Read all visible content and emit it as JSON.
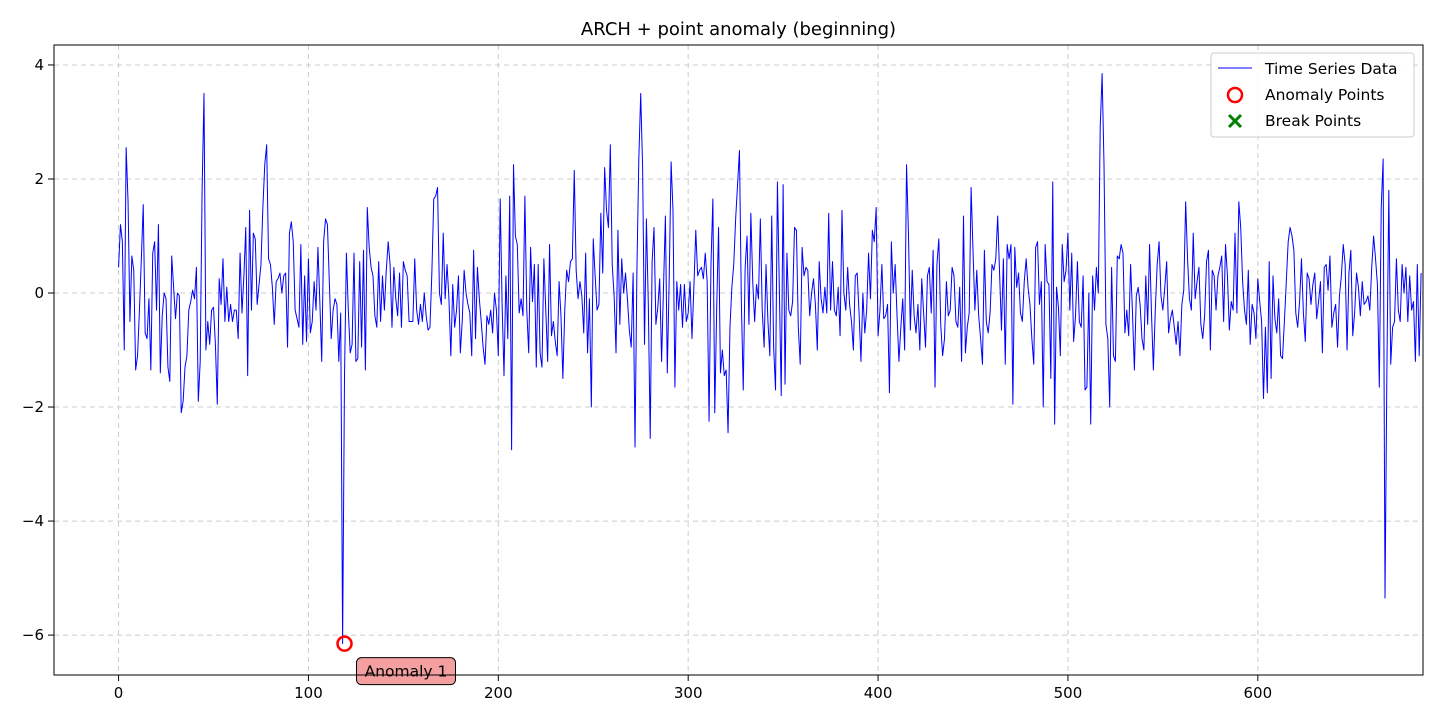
{
  "chart_data": {
    "type": "line",
    "title": "ARCH + point anomaly (beginning)",
    "xlabel": "",
    "ylabel": "",
    "xlim": [
      -34,
      687
    ],
    "ylim": [
      -6.7,
      4.35
    ],
    "xticks": [
      0,
      100,
      200,
      300,
      400,
      500,
      600
    ],
    "yticks": [
      -6,
      -4,
      -2,
      0,
      2,
      4
    ],
    "grid": true,
    "legend_position": "top-right",
    "colors": {
      "series": "#0000ff",
      "anomaly": "#ff0000",
      "break": "#008000",
      "grid": "#cccccc",
      "annotation_bg": "#f08080"
    },
    "series": [
      {
        "name": "Time Series Data",
        "x_start": 0,
        "x_step": 1,
        "values": [
          0.45,
          1.2,
          0.9,
          -1.0,
          2.55,
          1.6,
          -0.5,
          0.65,
          0.4,
          -1.35,
          -1.1,
          -0.3,
          0.6,
          1.55,
          -0.7,
          -0.8,
          -0.1,
          -1.35,
          0.7,
          0.9,
          -0.3,
          1.2,
          -1.4,
          -0.4,
          0.0,
          -0.1,
          -1.3,
          -1.55,
          0.65,
          0.1,
          -0.45,
          0.0,
          -0.05,
          -2.1,
          -1.9,
          -1.3,
          -1.1,
          -0.3,
          -0.15,
          0.05,
          -0.1,
          0.45,
          -1.9,
          -1.2,
          1.8,
          3.5,
          -1.0,
          -0.5,
          -0.9,
          -0.3,
          -0.25,
          -0.9,
          -1.95,
          0.25,
          -0.2,
          0.6,
          -0.5,
          0.1,
          -0.5,
          -0.2,
          -0.5,
          -0.3,
          -0.3,
          -0.8,
          0.7,
          -0.35,
          0.3,
          1.15,
          -1.45,
          1.45,
          -0.3,
          1.05,
          0.95,
          -0.2,
          0.15,
          0.5,
          1.5,
          2.25,
          2.6,
          0.6,
          0.5,
          0.1,
          -0.55,
          0.2,
          0.25,
          0.35,
          0.0,
          0.3,
          0.35,
          -0.95,
          1.05,
          1.25,
          0.9,
          -0.3,
          -0.45,
          -0.6,
          0.85,
          -0.9,
          0.3,
          -0.85,
          0.6,
          -0.7,
          -0.5,
          0.2,
          -0.3,
          0.8,
          -0.15,
          -1.2,
          0.9,
          1.3,
          1.2,
          0.2,
          -0.8,
          -0.3,
          -0.1,
          -0.2,
          -1.2,
          -0.35,
          -6.15,
          -1.45,
          0.7,
          -0.3,
          -1.05,
          -0.9,
          0.7,
          -1.2,
          -1.15,
          0.55,
          -0.95,
          0.75,
          -1.35,
          1.5,
          0.8,
          0.45,
          0.3,
          -0.4,
          -0.6,
          0.55,
          -0.5,
          0.3,
          -0.3,
          0.4,
          0.9,
          0.5,
          -0.6,
          0.45,
          -0.1,
          -0.4,
          0.35,
          -0.6,
          0.55,
          0.4,
          0.3,
          -0.5,
          -0.5,
          -0.5,
          0.6,
          -0.3,
          -0.55,
          -0.2,
          -0.5,
          0.0,
          -0.4,
          -0.65,
          -0.6,
          0.35,
          1.65,
          1.7,
          1.85,
          0.0,
          -0.2,
          1.05,
          -0.1,
          0.5,
          -0.1,
          -1.1,
          0.15,
          -0.6,
          -0.3,
          0.3,
          -1.05,
          -0.5,
          0.4,
          0.0,
          -0.2,
          -0.35,
          -1.1,
          0.75,
          -0.8,
          0.45,
          -0.1,
          -0.5,
          -0.95,
          -1.25,
          -0.4,
          -0.55,
          -0.3,
          -0.7,
          0.0,
          -0.3,
          -1.1,
          1.65,
          -0.2,
          -1.45,
          0.3,
          -0.8,
          1.7,
          -2.75,
          2.25,
          1.0,
          0.85,
          -0.35,
          -0.1,
          -0.4,
          1.7,
          -0.3,
          -1.05,
          0.8,
          -0.15,
          0.5,
          -1.3,
          0.5,
          -1.05,
          -1.3,
          0.6,
          -0.3,
          -1.2,
          0.85,
          -0.75,
          -0.5,
          -0.85,
          -1.1,
          0.2,
          -0.4,
          -1.5,
          -0.3,
          0.4,
          0.2,
          0.55,
          0.6,
          2.15,
          0.4,
          -0.1,
          0.2,
          -0.05,
          -0.7,
          0.7,
          -1.05,
          -0.1,
          -2.0,
          0.95,
          0.3,
          -0.3,
          -0.2,
          1.4,
          0.35,
          2.2,
          1.45,
          1.15,
          2.6,
          0.5,
          -0.05,
          -1.05,
          1.1,
          -0.55,
          0.6,
          0.0,
          0.35,
          -0.1,
          -0.65,
          -0.95,
          0.35,
          -2.7,
          0.4,
          2.35,
          3.5,
          2.2,
          -0.9,
          1.3,
          -0.2,
          -2.55,
          0.55,
          1.15,
          -0.55,
          -0.25,
          0.25,
          -1.2,
          0.1,
          1.35,
          -1.4,
          0.25,
          2.3,
          1.45,
          -1.65,
          0.2,
          -0.3,
          0.15,
          -0.6,
          0.15,
          -0.5,
          -0.35,
          0.2,
          -0.8,
          0.1,
          1.1,
          0.3,
          0.4,
          0.45,
          0.25,
          0.7,
          0.2,
          -2.25,
          0.5,
          1.65,
          -2.1,
          -0.3,
          1.15,
          -1.4,
          -1.0,
          -1.45,
          -1.35,
          -2.45,
          -0.6,
          0.1,
          0.5,
          1.3,
          1.9,
          2.5,
          -0.15,
          -1.7,
          0.45,
          1.0,
          -0.55,
          1.4,
          0.2,
          -0.5,
          0.15,
          -0.1,
          1.3,
          -0.3,
          -0.95,
          0.5,
          -0.5,
          -1.1,
          1.35,
          -0.95,
          -1.7,
          1.95,
          0.1,
          -1.8,
          1.9,
          -1.6,
          0.7,
          -0.3,
          -0.4,
          -0.15,
          1.15,
          1.1,
          -0.6,
          -1.25,
          0.8,
          0.3,
          0.45,
          0.4,
          -0.4,
          0.0,
          0.25,
          -0.2,
          -1.0,
          0.55,
          -0.1,
          -0.35,
          0.1,
          -0.35,
          1.4,
          -0.3,
          0.55,
          -0.3,
          -0.4,
          0.1,
          -0.75,
          1.45,
          0.0,
          -0.3,
          0.45,
          -0.2,
          -0.5,
          -1.0,
          0.3,
          0.35,
          -0.35,
          -1.2,
          0.0,
          -0.7,
          -0.3,
          0.7,
          -0.1,
          1.1,
          0.9,
          1.5,
          -0.75,
          -0.3,
          0.5,
          -0.45,
          -0.4,
          -0.2,
          -1.75,
          0.9,
          0.0,
          0.5,
          -0.4,
          -1.2,
          -0.6,
          -0.1,
          -1.0,
          2.25,
          1.05,
          -0.65,
          0.4,
          -0.4,
          -0.7,
          -0.2,
          -1.0,
          0.25,
          -0.35,
          -0.95,
          0.3,
          0.45,
          -0.35,
          0.75,
          -1.65,
          0.5,
          0.95,
          -0.55,
          -1.1,
          -0.8,
          0.2,
          -0.4,
          -0.3,
          0.45,
          0.3,
          -0.5,
          -0.6,
          0.1,
          -1.2,
          1.35,
          -1.05,
          -0.6,
          -0.35,
          1.85,
          0.75,
          -0.3,
          0.4,
          -0.4,
          -0.8,
          -1.25,
          0.75,
          -0.5,
          -0.7,
          -0.35,
          0.5,
          0.4,
          0.6,
          1.35,
          0.35,
          -0.65,
          0.6,
          -1.25,
          0.85,
          0.6,
          0.85,
          -1.95,
          0.8,
          0.1,
          0.35,
          -0.35,
          -0.5,
          0.2,
          0.6,
          0.1,
          -0.2,
          -0.8,
          -1.25,
          0.8,
          0.9,
          -0.2,
          0.2,
          -2.0,
          0.85,
          0.2,
          0.15,
          -1.5,
          1.95,
          -2.3,
          0.1,
          -0.25,
          -1.1,
          0.85,
          0.2,
          0.4,
          1.05,
          -0.3,
          0.7,
          -0.85,
          -0.4,
          0.55,
          -0.5,
          -0.6,
          0.3,
          -1.7,
          -1.65,
          0.0,
          -2.3,
          0.3,
          -0.3,
          0.45,
          0.0,
          2.9,
          3.85,
          2.25,
          -0.55,
          -0.8,
          -2.0,
          0.45,
          -1.1,
          -1.2,
          0.65,
          0.6,
          0.85,
          0.7,
          -0.7,
          -0.3,
          -0.75,
          0.5,
          -0.35,
          -1.35,
          -0.05,
          0.1,
          -0.2,
          -0.8,
          -1.0,
          0.3,
          -0.55,
          0.85,
          -0.35,
          -1.35,
          -0.3,
          0.5,
          0.9,
          -0.05,
          -0.3,
          0.1,
          0.55,
          -0.7,
          -0.45,
          -0.3,
          -0.6,
          -0.9,
          -0.5,
          -1.1,
          -0.2,
          0.05,
          1.6,
          0.6,
          -0.1,
          -0.3,
          1.05,
          -0.1,
          0.2,
          0.45,
          -0.55,
          -0.8,
          -0.4,
          0.55,
          0.75,
          -1.0,
          0.4,
          0.3,
          -0.3,
          0.3,
          0.45,
          0.65,
          -0.5,
          0.85,
          0.3,
          -0.65,
          -0.15,
          -0.3,
          1.05,
          -0.35,
          1.6,
          1.15,
          0.2,
          -0.3,
          -0.55,
          0.4,
          -0.9,
          -0.2,
          -0.35,
          -0.8,
          0.25,
          -0.15,
          -0.5,
          -1.85,
          -0.6,
          -1.75,
          0.55,
          -1.5,
          0.3,
          -0.45,
          -0.7,
          -0.1,
          -1.1,
          -1.15,
          -0.5,
          0.2,
          0.9,
          1.15,
          1.0,
          0.75,
          -0.35,
          -0.6,
          -0.15,
          0.6,
          -0.35,
          -0.85,
          0.35,
          0.25,
          -0.2,
          0.15,
          0.35,
          -0.45,
          -0.15,
          0.2,
          -1.05,
          0.45,
          0.5,
          0.05,
          0.65,
          -0.6,
          -0.35,
          -0.2,
          -0.95,
          -0.05,
          0.3,
          0.85,
          0.5,
          -1.0,
          0.35,
          0.75,
          -0.75,
          -0.35,
          0.35,
          0.1,
          -0.4,
          0.2,
          -0.2,
          -0.15,
          -0.05,
          -0.3,
          0.45,
          1.0,
          0.6,
          0.15,
          -1.65,
          1.5,
          2.35,
          -5.35,
          -1.3,
          1.8,
          -1.25,
          -0.6,
          -0.5,
          0.6,
          -0.3,
          -0.5,
          0.5,
          0.0,
          0.45,
          -0.5,
          0.3,
          -0.3,
          -0.15,
          -1.2,
          0.5,
          -1.1,
          0.35
        ]
      }
    ],
    "anomaly_points": [
      {
        "x": 119,
        "y": -6.15,
        "label": "Anomaly 1"
      }
    ],
    "break_points": [],
    "legend": [
      "Time Series Data",
      "Anomaly Points",
      "Break Points"
    ]
  }
}
